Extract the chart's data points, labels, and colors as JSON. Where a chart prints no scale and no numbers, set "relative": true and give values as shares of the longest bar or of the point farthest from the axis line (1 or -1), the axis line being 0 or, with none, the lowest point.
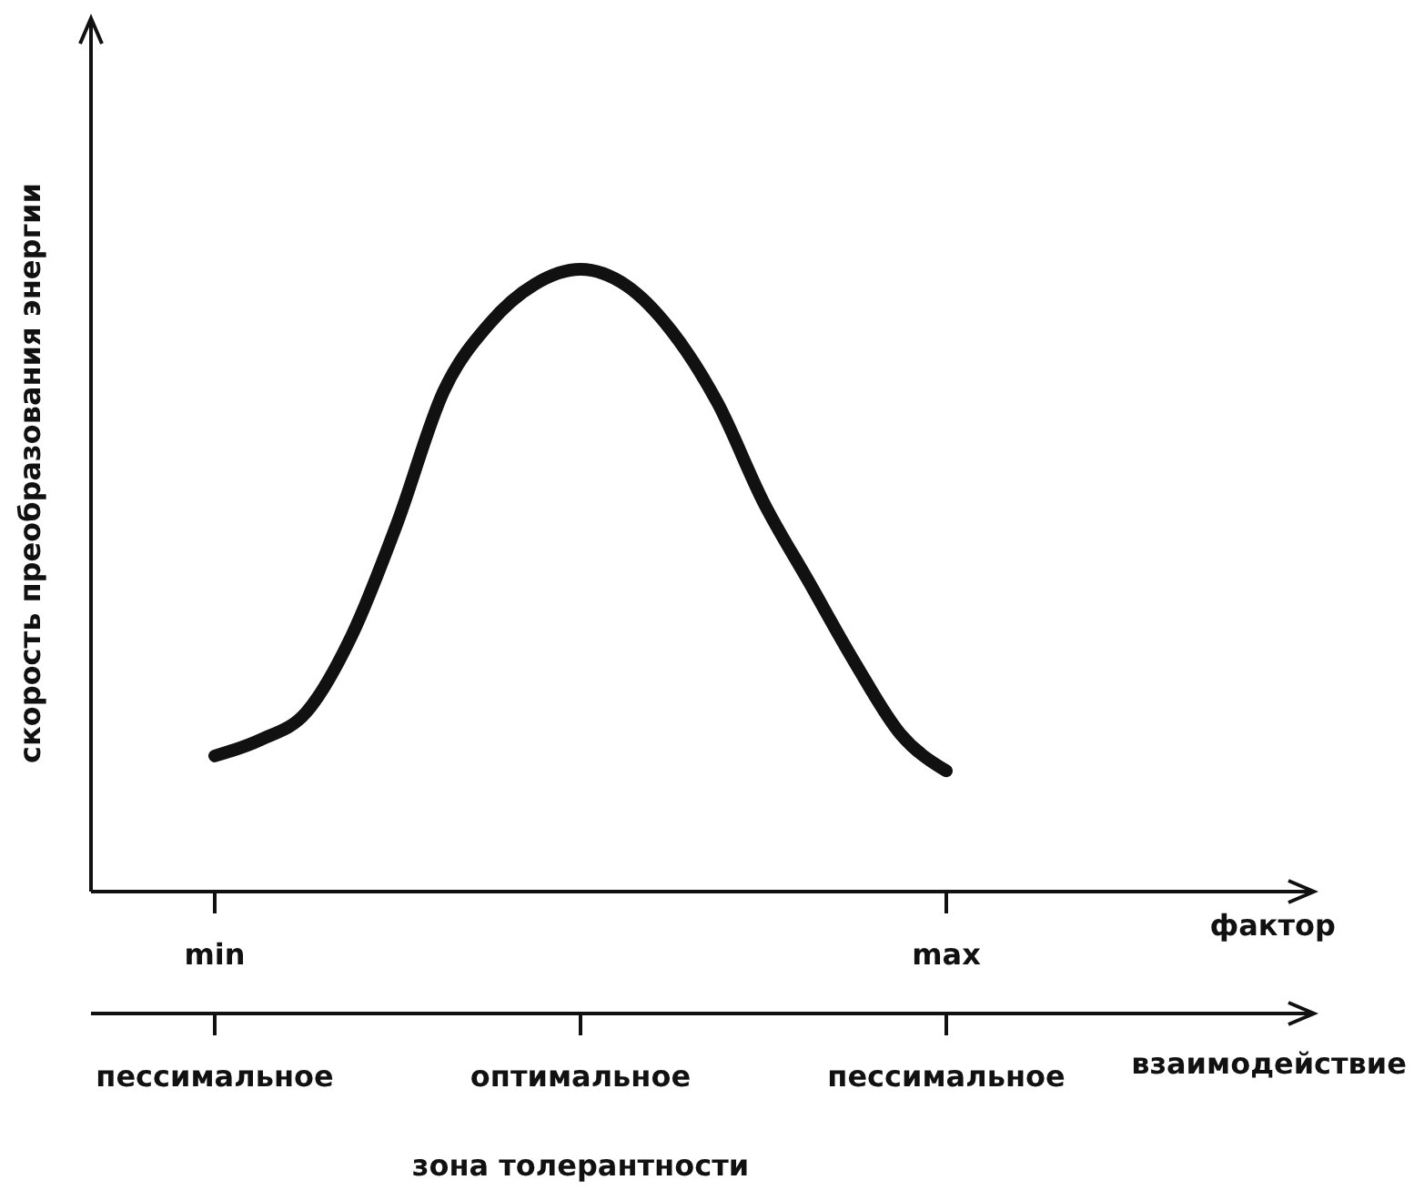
{
  "chart_data": {
    "type": "line",
    "relative": true,
    "ylabel": "скорость преобразования энергии",
    "x2label": "взаимодействие",
    "categories": [
      "min",
      null,
      null,
      null,
      null,
      null,
      null,
      null,
      null,
      null,
      null,
      null,
      null,
      null,
      null,
      null,
      "max"
    ],
    "annotations": [
      "фактор",
      "пессимальное",
      "оптимальное",
      "пессимальное",
      "зона толерантности"
    ],
    "grid": false,
    "marker": "none",
    "line_style": "solid",
    "series": [
      {
        "color": "#111111",
        "values": [
          0.218,
          0.244,
          0.288,
          0.412,
          0.594,
          0.803,
          0.912,
          0.976,
          1,
          0.974,
          0.9,
          0.785,
          0.626,
          0.497,
          0.368,
          0.253,
          0.194
        ]
      }
    ]
  }
}
